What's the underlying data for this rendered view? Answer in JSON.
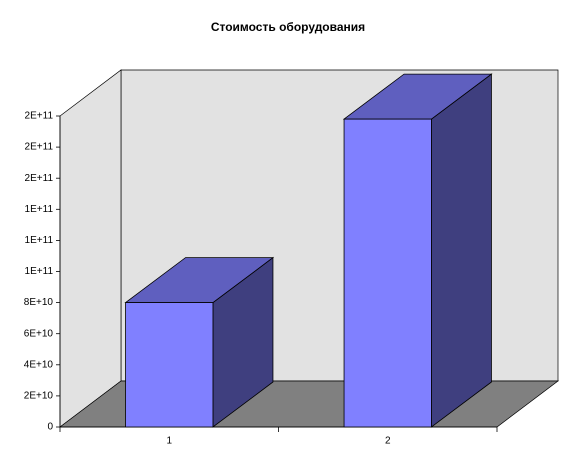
{
  "chart_data": {
    "type": "bar3d",
    "title": "Стоимость оборудования",
    "categories": [
      "1",
      "2"
    ],
    "values": [
      80000000000,
      198000000000
    ],
    "colors": {
      "front": "#8080ff",
      "top": "#5f5fbf",
      "side": "#3f3f7f"
    },
    "ylim": [
      0,
      200000000000
    ],
    "yticks": [
      0,
      {
        "value": 20000000000,
        "label": "2E+10"
      },
      {
        "value": 40000000000,
        "label": "4E+10"
      },
      {
        "value": 60000000000,
        "label": "6E+10"
      },
      {
        "value": 80000000000,
        "label": "8E+10"
      },
      {
        "value": 100000000000,
        "label": "1E+11"
      },
      {
        "value": 120000000000,
        "label": "1E+11"
      },
      {
        "value": 140000000000,
        "label": "1E+11"
      },
      {
        "value": 160000000000,
        "label": "2E+11"
      },
      {
        "value": 180000000000,
        "label": "2E+11"
      },
      {
        "value": 200000000000,
        "label": "2E+11"
      }
    ]
  }
}
